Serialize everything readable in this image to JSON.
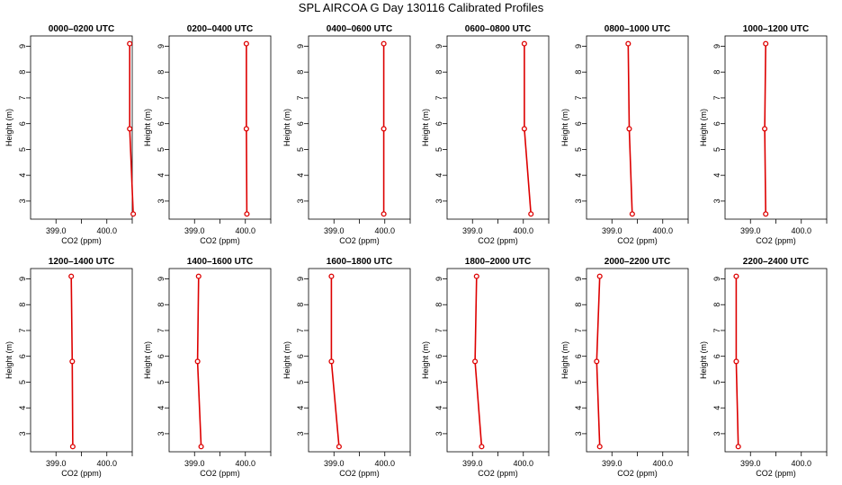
{
  "title": "SPL AIRCOA G  Day 130116  Calibrated Profiles",
  "chart_data": {
    "type": "line",
    "title": "SPL AIRCOA G  Day 130116  Calibrated Profiles",
    "xlabel": "CO2 (ppm)",
    "ylabel": "Height (m)",
    "xlim": [
      398.5,
      400.5
    ],
    "ylim": [
      2.3,
      9.4
    ],
    "x_ticks": [
      399.0,
      399.5,
      400.0,
      400.5
    ],
    "x_tick_labels": [
      "399.0",
      "",
      "400.0",
      ""
    ],
    "y_ticks": [
      3,
      4,
      5,
      6,
      7,
      8,
      9
    ],
    "y_tick_labels": [
      "3",
      "4",
      "5",
      "6",
      "7",
      "8",
      "9"
    ],
    "heights": [
      9.1,
      5.8,
      2.5
    ],
    "line_color": "#dd0000",
    "marker_color": "#dd0000",
    "panels": [
      {
        "title": "0000–0200 UTC",
        "co2": [
          400.45,
          400.45,
          400.52
        ]
      },
      {
        "title": "0200–0400 UTC",
        "co2": [
          400.02,
          400.02,
          400.03
        ]
      },
      {
        "title": "0400–0600 UTC",
        "co2": [
          399.98,
          399.98,
          399.98
        ]
      },
      {
        "title": "0600–0800 UTC",
        "co2": [
          400.02,
          400.02,
          400.15
        ]
      },
      {
        "title": "0800–1000 UTC",
        "co2": [
          399.32,
          399.34,
          399.4
        ]
      },
      {
        "title": "1000–1200 UTC",
        "co2": [
          399.3,
          399.28,
          399.3
        ]
      },
      {
        "title": "1200–1400 UTC",
        "co2": [
          399.3,
          399.32,
          399.33
        ]
      },
      {
        "title": "1400–1600 UTC",
        "co2": [
          399.08,
          399.06,
          399.13
        ]
      },
      {
        "title": "1600–1800 UTC",
        "co2": [
          398.95,
          398.95,
          399.1
        ]
      },
      {
        "title": "1800–2000 UTC",
        "co2": [
          399.08,
          399.05,
          399.18
        ]
      },
      {
        "title": "2000–2200 UTC",
        "co2": [
          398.76,
          398.7,
          398.76
        ]
      },
      {
        "title": "2200–2400 UTC",
        "co2": [
          398.72,
          398.72,
          398.76
        ]
      }
    ]
  }
}
